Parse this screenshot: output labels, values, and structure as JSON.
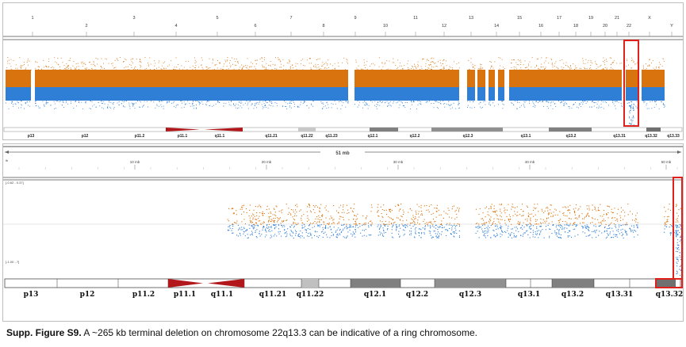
{
  "chromosome_ruler": [
    "1",
    "2",
    "3",
    "4",
    "5",
    "6",
    "7",
    "8",
    "9",
    "10",
    "11",
    "12",
    "13",
    "14",
    "15",
    "16",
    "17",
    "18",
    "19",
    "20",
    "21",
    "22",
    "X",
    "Y"
  ],
  "top_bands": [
    "p13",
    "p12",
    "p11.2",
    "p11.1",
    "q11.1",
    "q11.21",
    "q11.22",
    "q11.23",
    "q12.1",
    "q12.2",
    "q12.3",
    "q13.1",
    "q13.2",
    "q13.31",
    "q13.32",
    "q13.33"
  ],
  "span_label": "51 mb",
  "zoom_ruler": {
    "start": "lb",
    "ticks": [
      "10 mb",
      "20 mb",
      "30 mb",
      "40 mb",
      "50 mb"
    ]
  },
  "axis_labels": {
    "upper": "[-0.62 - 0.37]",
    "lower": "[-1.00 - ?]"
  },
  "bottom_bands": [
    "p13",
    "p12",
    "p11.2",
    "p11.1",
    "q11.1",
    "q11.21",
    "q11.22",
    "q12.1",
    "q12.2",
    "q12.3",
    "q13.1",
    "q13.2",
    "q13.31",
    "q13.32"
  ],
  "colors": {
    "gain": "#d9730d",
    "loss": "#2f7fd6",
    "highlight": "#e0201b",
    "centromere": "#b2181b"
  },
  "caption": {
    "label": "Supp. Figure S9.",
    "text": " A ~265 kb terminal deletion on chromosome 22q13.3 can be indicative of a ring chromosome."
  }
}
